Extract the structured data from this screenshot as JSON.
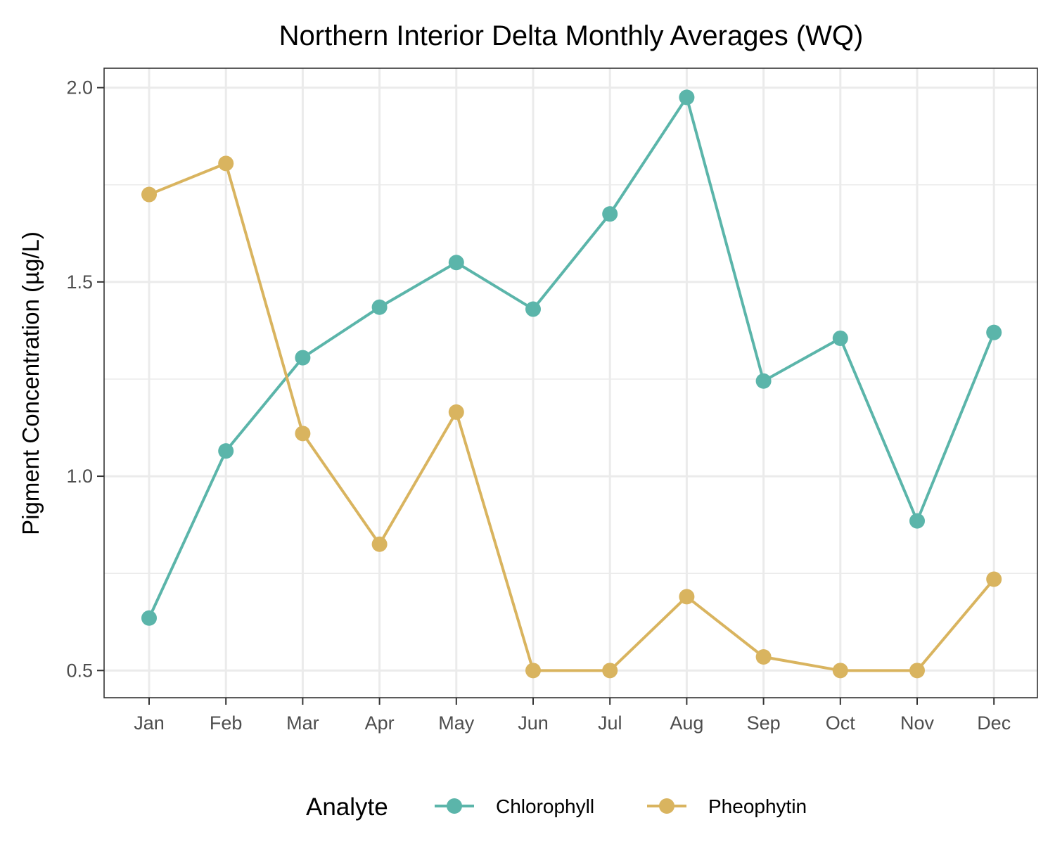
{
  "chart_data": {
    "type": "line",
    "title": "Northern Interior Delta Monthly Averages (WQ)",
    "xlabel": "",
    "ylabel": "Pigment Concentration (µg/L)",
    "categories": [
      "Jan",
      "Feb",
      "Mar",
      "Apr",
      "May",
      "Jun",
      "Jul",
      "Aug",
      "Sep",
      "Oct",
      "Nov",
      "Dec"
    ],
    "ylim": [
      0.43,
      2.05
    ],
    "yticks": [
      0.5,
      1.0,
      1.5,
      2.0
    ],
    "ytick_labels": [
      "0.5",
      "1.0",
      "1.5",
      "2.0"
    ],
    "grid": true,
    "legend": {
      "title": "Analyte",
      "position": "bottom"
    },
    "series": [
      {
        "name": "Chlorophyll",
        "color": "#5bb5aa",
        "values": [
          0.635,
          1.065,
          1.305,
          1.435,
          1.55,
          1.43,
          1.675,
          1.975,
          1.245,
          1.355,
          0.885,
          1.37
        ]
      },
      {
        "name": "Pheophytin",
        "color": "#d9b45f",
        "values": [
          1.725,
          1.805,
          1.11,
          0.825,
          1.165,
          0.5,
          0.5,
          0.69,
          0.535,
          0.5,
          0.5,
          0.735
        ]
      }
    ]
  }
}
